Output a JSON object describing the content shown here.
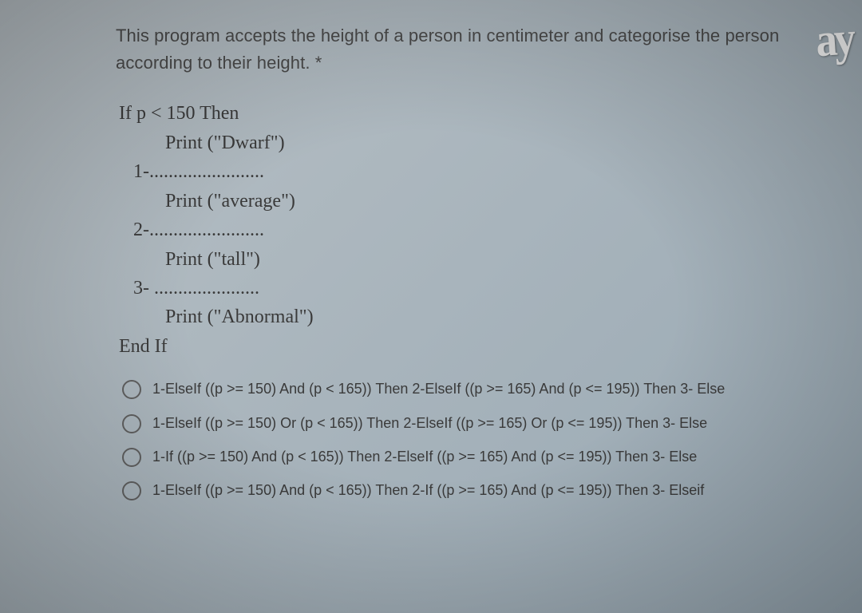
{
  "question": {
    "text": "This program accepts the height of a person in centimeter and categorise the person according to their height. *"
  },
  "code": {
    "l1": "If p < 150 Then",
    "l2": "Print (\"Dwarf\")",
    "l3": "1-........................",
    "l4": "Print (\"average\")",
    "l5": "2-........................",
    "l6": "Print (\"tall\")",
    "l7": "3- ......................",
    "l8": "Print (\"Abnormal\")",
    "l9": "End If"
  },
  "options": [
    "1-ElseIf ((p >= 150) And (p < 165)) Then 2-ElseIf ((p >= 165) And (p <= 195)) Then 3- Else",
    "1-ElseIf ((p >= 150) Or (p < 165)) Then 2-ElseIf ((p >= 165) Or (p <= 195)) Then 3- Else",
    "1-If ((p >= 150) And (p < 165)) Then 2-ElseIf ((p >= 165) And (p <= 195)) Then 3- Else",
    "1-ElseIf ((p >= 150) And (p < 165)) Then 2-If ((p >= 165) And (p <= 195)) Then 3- Elseif"
  ],
  "watermark": "ay",
  "colors": {
    "bg_start": "#b8c0c5",
    "bg_end": "#98a8b3",
    "text_body": "#4a4a4a",
    "text_code": "#3a3a3a",
    "radio_border": "#606060",
    "watermark": "#fcfcfc"
  },
  "typography": {
    "question_fontsize": 22,
    "code_fontsize": 24,
    "option_fontsize": 18,
    "code_family": "Times New Roman",
    "body_family": "Arial"
  }
}
